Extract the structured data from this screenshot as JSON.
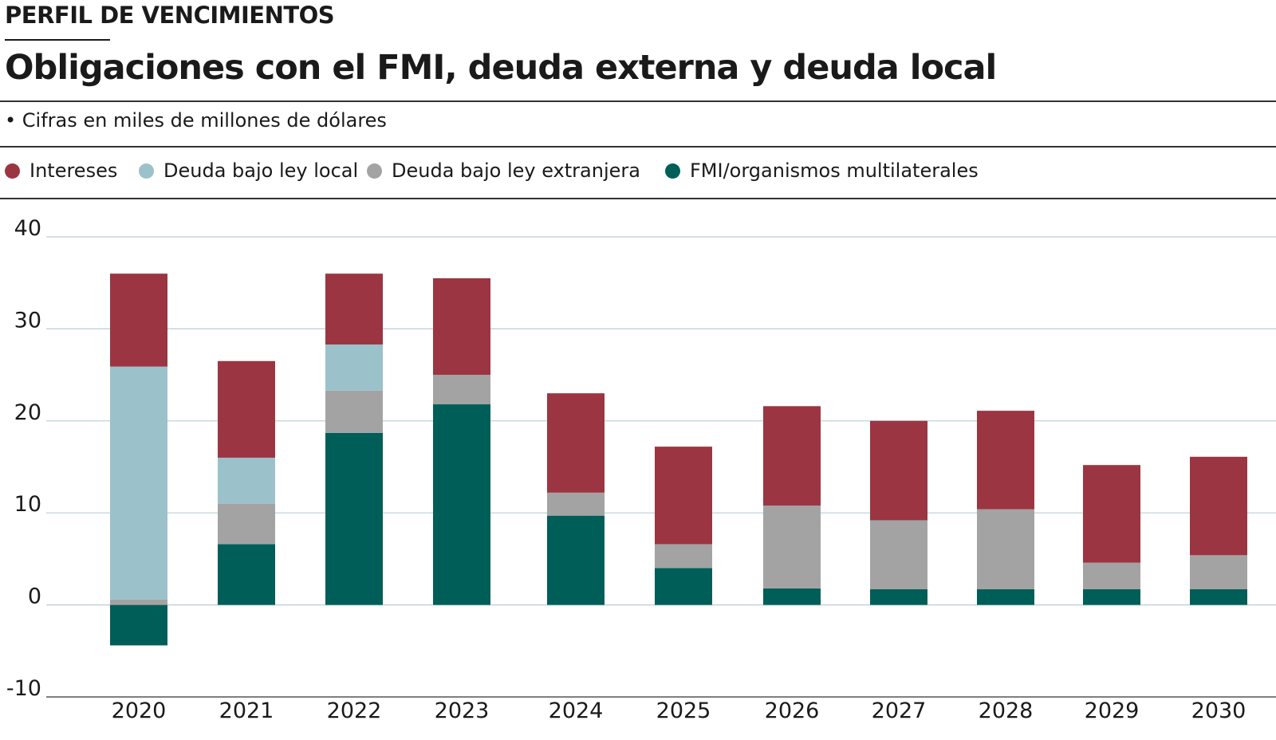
{
  "header": {
    "kicker": "PERFIL DE VENCIMIENTOS",
    "title": "Obligaciones con el FMI, deuda externa y deuda local",
    "subtitle": "• Cifras en miles de millones de dólares"
  },
  "legend": [
    {
      "label": "Intereses",
      "color": "#9c3542"
    },
    {
      "label": "Deuda bajo ley local",
      "color": "#9bc1ca"
    },
    {
      "label": "Deuda bajo ley extranjera",
      "color": "#a3a3a3"
    },
    {
      "label": "FMI/organismos multilaterales",
      "color": "#005e58"
    }
  ],
  "chart_data": {
    "type": "bar",
    "stacked": true,
    "title": "Obligaciones con el FMI, deuda externa y deuda local",
    "ylabel": "Cifras en miles de millones de dólares",
    "ylim": [
      -10,
      40
    ],
    "yticks": [
      40,
      30,
      20,
      10,
      0,
      -10
    ],
    "grid": true,
    "legend_position": "top",
    "categories": [
      "2020",
      "2021",
      "2022",
      "2023",
      "2024",
      "2025",
      "2026",
      "2027",
      "2028",
      "2029",
      "2030"
    ],
    "series": [
      {
        "name": "FMI/organismos multilaterales",
        "color": "#005e58",
        "values": [
          -4.4,
          6.6,
          18.7,
          21.8,
          9.7,
          4.0,
          1.8,
          1.7,
          1.7,
          1.7,
          1.7
        ]
      },
      {
        "name": "Deuda bajo ley extranjera",
        "color": "#a3a3a3",
        "values": [
          0.6,
          4.4,
          4.6,
          3.2,
          2.5,
          2.6,
          9.0,
          7.5,
          8.7,
          2.9,
          3.7
        ]
      },
      {
        "name": "Deuda bajo ley local",
        "color": "#9bc1ca",
        "values": [
          25.3,
          5.0,
          5.0,
          0,
          0,
          0,
          0,
          0,
          0,
          0,
          0
        ]
      },
      {
        "name": "Intereses",
        "color": "#9c3542",
        "values": [
          10.1,
          10.5,
          7.7,
          10.5,
          10.8,
          10.6,
          10.8,
          10.8,
          10.7,
          10.6,
          10.7
        ]
      }
    ]
  }
}
